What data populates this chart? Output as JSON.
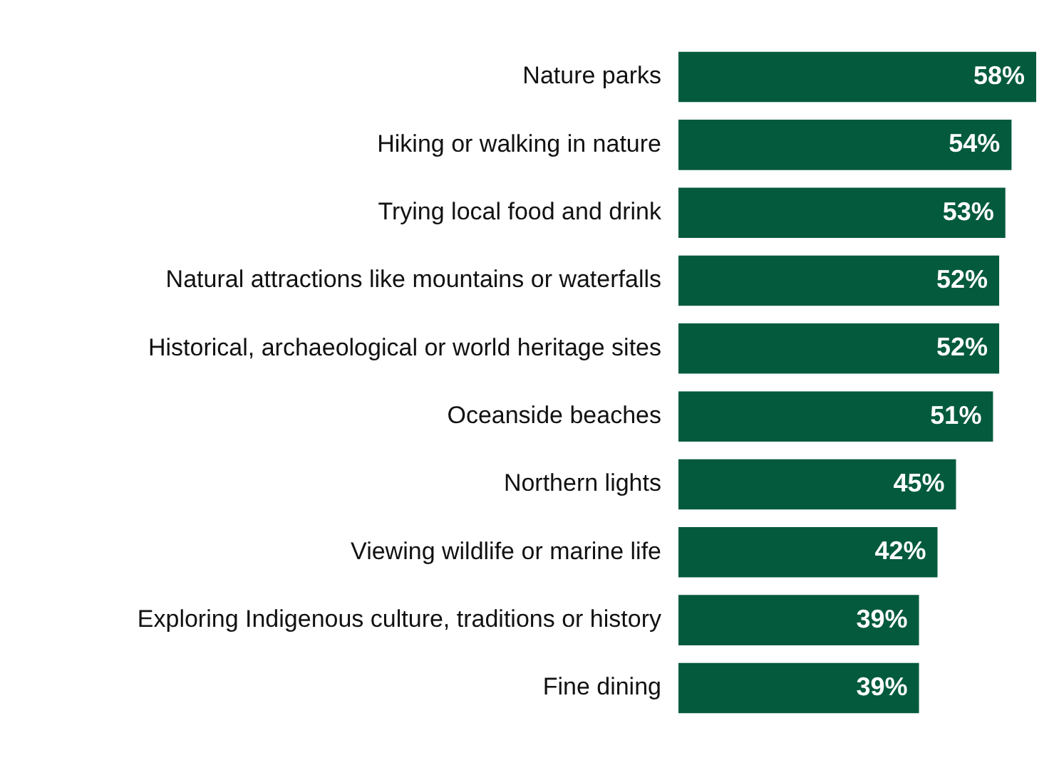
{
  "chart_data": {
    "type": "bar",
    "orientation": "horizontal",
    "categories": [
      "Nature parks",
      "Hiking or walking in nature",
      "Trying local food and drink",
      "Natural attractions like mountains or waterfalls",
      "Historical, archaeological or world heritage sites",
      "Oceanside beaches",
      "Northern lights",
      "Viewing wildlife or marine life",
      "Exploring Indigenous culture, traditions or history",
      "Fine dining"
    ],
    "values": [
      58,
      54,
      53,
      52,
      52,
      51,
      45,
      42,
      39,
      39
    ],
    "value_labels": [
      "58%",
      "54%",
      "53%",
      "52%",
      "52%",
      "51%",
      "45%",
      "42%",
      "39%",
      "39%"
    ],
    "color": "#035a3d",
    "xlim": [
      0,
      58
    ],
    "tick_labels": "y",
    "grid": false,
    "legend": false
  }
}
